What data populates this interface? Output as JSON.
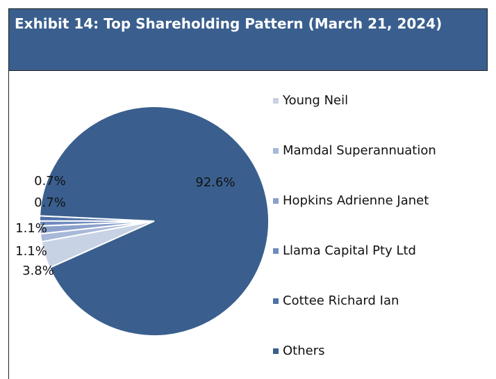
{
  "chart_data": {
    "type": "pie",
    "title": "Exhibit 14: Top Shareholding Pattern (March 21, 2024)",
    "categories": [
      "Young Neil",
      "Mamdal Superannuation",
      "Hopkins Adrienne Janet",
      "Llama Capital Pty Ltd",
      "Cottee Richard Ian",
      "Others"
    ],
    "values": [
      3.8,
      1.1,
      1.1,
      0.7,
      0.7,
      92.6
    ],
    "value_labels": [
      "3.8%",
      "1.1%",
      "1.1%",
      "0.7%",
      "0.7%",
      "92.6%"
    ],
    "colors": [
      "#c8d2e5",
      "#a8b8d8",
      "#8ba1cb",
      "#6f8abd",
      "#4f70a7",
      "#3a5f8e"
    ]
  }
}
